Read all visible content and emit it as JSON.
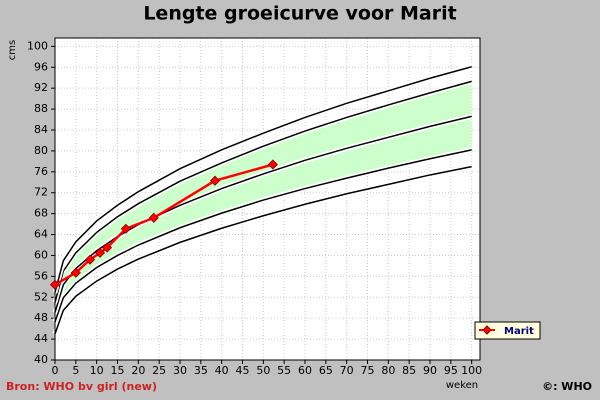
{
  "chart_data": {
    "type": "line",
    "title": "Lengte groeicurve voor Marit",
    "y_label": "cms",
    "x_label": "weken",
    "source": "Bron: WHO bv girl (new)",
    "credit": "©: WHO",
    "xlim": [
      0,
      102
    ],
    "ylim": [
      40,
      101.6
    ],
    "xticks": [
      0,
      5,
      10,
      15,
      20,
      25,
      30,
      35,
      40,
      45,
      50,
      55,
      60,
      65,
      70,
      75,
      80,
      85,
      90,
      95,
      100
    ],
    "yticks": [
      40,
      44,
      48,
      52,
      56,
      60,
      64,
      68,
      72,
      76,
      80,
      84,
      88,
      92,
      96,
      100
    ],
    "grid": true,
    "legend": "bottom-right",
    "curves_x": [
      0,
      2,
      5,
      10,
      15,
      20,
      30,
      40,
      50,
      60,
      70,
      80,
      90,
      100
    ],
    "curves": [
      {
        "color": "#000000",
        "values": [
          45,
          49.5,
          52.2,
          55.1,
          57.4,
          59.3,
          62.5,
          65.2,
          67.6,
          69.8,
          71.8,
          73.6,
          75.4,
          77.0
        ]
      },
      {
        "color": "#000000",
        "values": [
          47.3,
          51.9,
          54.7,
          57.7,
          60.0,
          62.0,
          65.3,
          68.1,
          70.6,
          72.8,
          74.8,
          76.7,
          78.5,
          80.2
        ]
      },
      {
        "color": "#000000",
        "values": [
          49.1,
          54.4,
          57.5,
          60.9,
          63.6,
          65.9,
          69.6,
          72.8,
          75.6,
          78.2,
          80.5,
          82.6,
          84.7,
          86.6
        ]
      },
      {
        "color": "#000000",
        "values": [
          51.0,
          57.0,
          60.5,
          64.4,
          67.4,
          69.9,
          74.2,
          77.7,
          80.9,
          83.8,
          86.4,
          88.8,
          91.1,
          93.3
        ]
      },
      {
        "color": "#000000",
        "values": [
          52.9,
          59.0,
          62.6,
          66.6,
          69.6,
          72.2,
          76.6,
          80.2,
          83.4,
          86.4,
          89.1,
          91.5,
          93.9,
          96.1
        ]
      }
    ],
    "band_between": [
      1,
      3
    ],
    "band_color": "#ccffcc",
    "series": [
      {
        "name": "Marit",
        "color": "#ff0000",
        "x": [
          0,
          5,
          8.4,
          10.8,
          12.5,
          17,
          23.7,
          38.4,
          52.3
        ],
        "values": [
          54.4,
          56.7,
          59.2,
          60.5,
          61.5,
          65.1,
          67.2,
          74.3,
          77.4
        ]
      }
    ]
  }
}
